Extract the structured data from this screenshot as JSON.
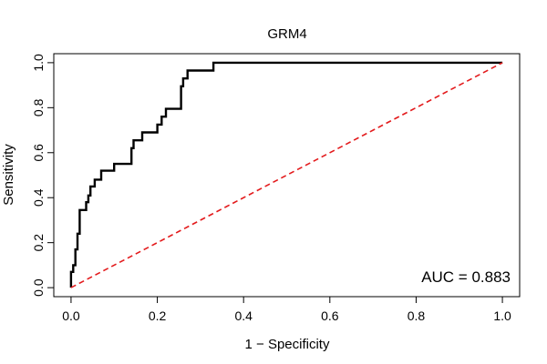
{
  "chart_data": {
    "type": "line",
    "title": "GRM4",
    "xlabel": "1 − Specificity",
    "ylabel": "Sensitivity",
    "xlim": [
      -0.04,
      1.04
    ],
    "ylim": [
      -0.04,
      1.04
    ],
    "x_ticks": [
      "0.0",
      "0.2",
      "0.4",
      "0.6",
      "0.8",
      "1.0"
    ],
    "y_ticks": [
      "0.0",
      "0.2",
      "0.4",
      "0.6",
      "0.8",
      "1.0"
    ],
    "annotation": "AUC = 0.883",
    "grid": false,
    "series": [
      {
        "color": "#000000",
        "style": "solid-step",
        "x": [
          0,
          0,
          0.005,
          0.005,
          0.01,
          0.01,
          0.015,
          0.015,
          0.02,
          0.02,
          0.025,
          0.025,
          0.035,
          0.035,
          0.04,
          0.04,
          0.045,
          0.045,
          0.055,
          0.055,
          0.07,
          0.07,
          0.1,
          0.1,
          0.14,
          0.14,
          0.145,
          0.145,
          0.165,
          0.165,
          0.2,
          0.2,
          0.21,
          0.21,
          0.22,
          0.22,
          0.255,
          0.255,
          0.26,
          0.26,
          0.27,
          0.27,
          0.28,
          0.28,
          0.33,
          0.33,
          1.0
        ],
        "y": [
          0,
          0.07,
          0.07,
          0.1,
          0.1,
          0.17,
          0.17,
          0.24,
          0.24,
          0.345,
          0.345,
          0.345,
          0.345,
          0.38,
          0.38,
          0.41,
          0.41,
          0.45,
          0.45,
          0.48,
          0.48,
          0.52,
          0.52,
          0.55,
          0.55,
          0.62,
          0.62,
          0.655,
          0.655,
          0.69,
          0.69,
          0.725,
          0.725,
          0.76,
          0.76,
          0.795,
          0.795,
          0.895,
          0.895,
          0.93,
          0.93,
          0.965,
          0.965,
          0.965,
          0.965,
          1.0,
          1.0
        ]
      },
      {
        "color": "#e31a1c",
        "style": "dashed",
        "x": [
          0,
          1
        ],
        "y": [
          0,
          1
        ]
      }
    ]
  }
}
